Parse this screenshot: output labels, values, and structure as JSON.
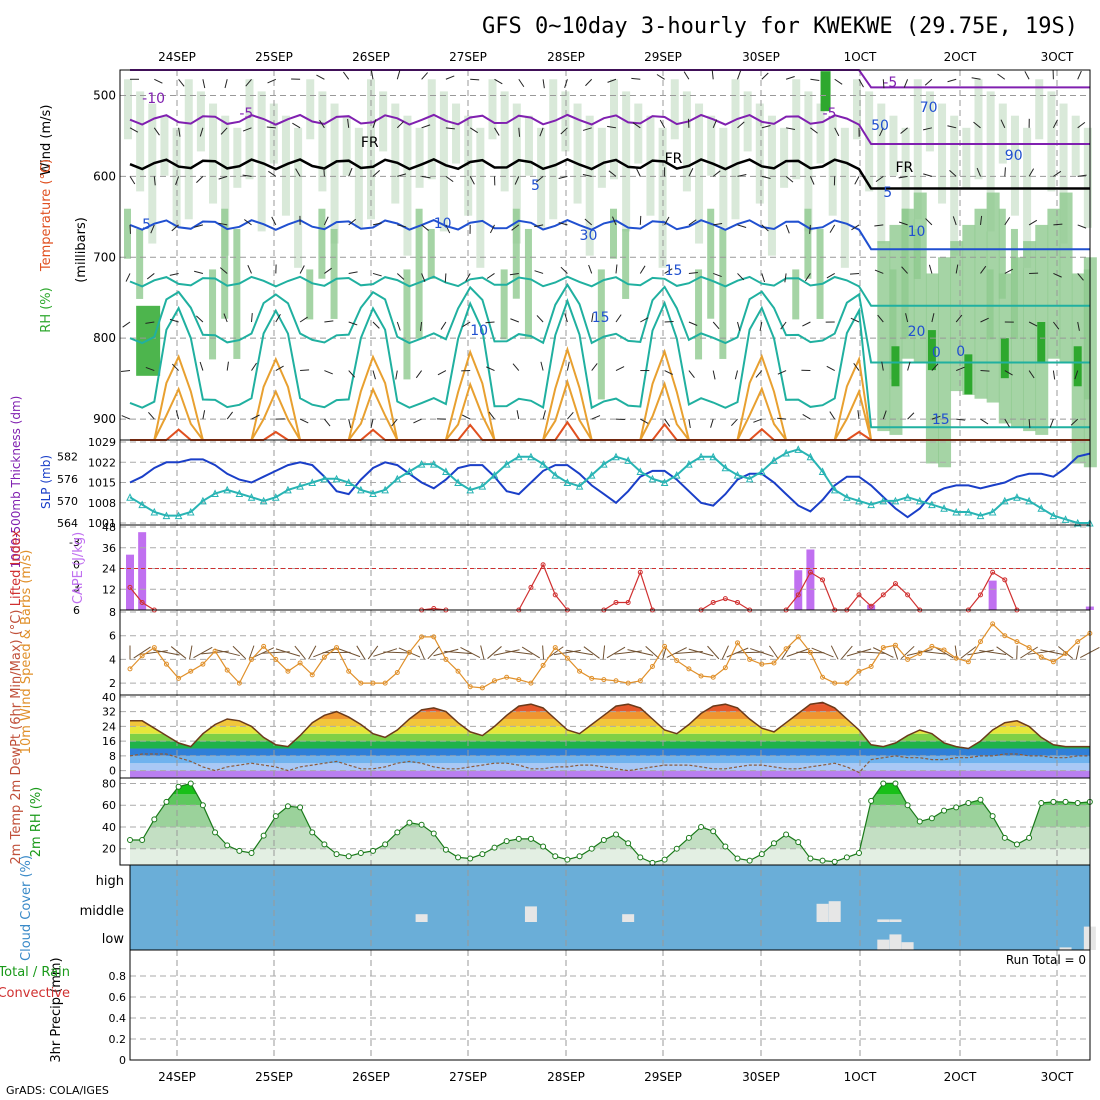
{
  "title": "GFS 0~10day 3-hourly for KWEKWE (29.75E, 19S)",
  "credit": "GrADS: COLA/IGES",
  "run_total_text": "Run Total = 0",
  "date_labels": [
    "24SEP",
    "25SEP",
    "26SEP",
    "27SEP",
    "28SEP",
    "29SEP",
    "30SEP",
    "1OCT",
    "2OCT",
    "3OCT"
  ],
  "colors": {
    "rh_dark": "#2ea82e",
    "rh_mid": "#8fc98f",
    "rh_light": "#cfe4cf",
    "isotherm_warm": "#e8a030",
    "isotherm_hot": "#e05020",
    "isotherm_cool": "#20b0a0",
    "isotherm_cold": "#2050d0",
    "isotherm_minus": "#8020b0",
    "freezing": "#000000",
    "slp_line": "#1a3fc8",
    "thickness_line": "#28b4b4",
    "cape_bar": "#c070f0",
    "lifted_index": "#d03030",
    "wind_speed": "#e0902a",
    "wind_barb": "#705030",
    "cloud_bg": "#6aaed8",
    "cloud_fill": "#e6e6e6"
  },
  "chart_data": [
    {
      "type": "heatmap",
      "panel": "cross-section",
      "ylabel_parts": [
        "RH (%)",
        "Temperature (°C)",
        "Wind (m/s)",
        "(millibars)"
      ],
      "y_ticks": [
        500,
        600,
        700,
        800,
        900
      ],
      "ylim": [
        1000,
        450
      ],
      "contour_labels": [
        "-10",
        "-5",
        "-5",
        "-5",
        "FR",
        "FR",
        "FR",
        "5",
        "5",
        "5",
        "10",
        "10",
        "15",
        "15",
        "20",
        "0",
        "0",
        "15",
        "10",
        "30",
        "50",
        "70",
        "90"
      ],
      "grid": true
    },
    {
      "type": "line",
      "panel": "slp-thickness",
      "ylabel_left": "1000-500mb Thickness (dm)",
      "ylabel_right": "SLP (mb)",
      "left_ticks": [
        "564",
        "570",
        "576",
        "582"
      ],
      "right_ticks": [
        "1001",
        "1008",
        "1015",
        "1022",
        "1029"
      ],
      "x": [
        0,
        1,
        2,
        3,
        4,
        5,
        6,
        7,
        8,
        9,
        10,
        11,
        12,
        13,
        14,
        15,
        16,
        17,
        18,
        19,
        20,
        21,
        22,
        23,
        24,
        25,
        26,
        27,
        28,
        29,
        30,
        31,
        32,
        33,
        34,
        35,
        36,
        37,
        38,
        39,
        40,
        41,
        42,
        43,
        44,
        45,
        46,
        47,
        48,
        49,
        50,
        51,
        52,
        53,
        54,
        55,
        56,
        57,
        58,
        59,
        60,
        61,
        62,
        63,
        64,
        65,
        66,
        67,
        68,
        69,
        70,
        71,
        72,
        73,
        74,
        75,
        76,
        77,
        78,
        79
      ],
      "series": [
        {
          "name": "SLP",
          "unit": "mb",
          "values": [
            1015,
            1017,
            1020,
            1022,
            1022,
            1023,
            1023,
            1021,
            1018,
            1016,
            1015,
            1017,
            1019,
            1021,
            1022,
            1021,
            1017,
            1012,
            1011,
            1016,
            1020,
            1022,
            1021,
            1018,
            1015,
            1013,
            1016,
            1020,
            1021,
            1021,
            1017,
            1012,
            1011,
            1015,
            1019,
            1021,
            1021,
            1018,
            1014,
            1011,
            1008,
            1012,
            1017,
            1019,
            1019,
            1016,
            1012,
            1008,
            1007,
            1011,
            1016,
            1018,
            1018,
            1015,
            1011,
            1007,
            1005,
            1009,
            1014,
            1017,
            1017,
            1014,
            1010,
            1006,
            1003,
            1006,
            1011,
            1013,
            1014,
            1014,
            1013,
            1014,
            1015,
            1017,
            1018,
            1018,
            1017,
            1020,
            1024,
            1025
          ]
        },
        {
          "name": "Thickness",
          "unit": "dm",
          "values": [
            571,
            569,
            567,
            566,
            566,
            567,
            570,
            572,
            573,
            572,
            571,
            570,
            571,
            573,
            574,
            575,
            576,
            576,
            575,
            573,
            572,
            573,
            576,
            578,
            580,
            580,
            578,
            575,
            573,
            574,
            577,
            580,
            582,
            582,
            580,
            577,
            575,
            574,
            577,
            580,
            582,
            581,
            578,
            576,
            575,
            577,
            580,
            582,
            582,
            579,
            577,
            576,
            578,
            581,
            583,
            584,
            582,
            578,
            573,
            571,
            570,
            569,
            570,
            570,
            571,
            570,
            569,
            568,
            567,
            567,
            566,
            567,
            570,
            571,
            570,
            568,
            566,
            565,
            564,
            564
          ]
        }
      ]
    },
    {
      "type": "bar",
      "panel": "cape-lifted-index",
      "ylabel_left": "Lifted Index",
      "ylabel_right": "CAPE (J/kg)",
      "left_ticks": [
        "-3",
        "0",
        "3",
        "6"
      ],
      "right_ticks": [
        "12",
        "24",
        "36",
        "48"
      ],
      "reference_line": 24,
      "cape_bars": [
        {
          "t": 0,
          "value": 32
        },
        {
          "t": 1,
          "value": 45
        },
        {
          "t": 55,
          "value": 23
        },
        {
          "t": 56,
          "value": 35
        },
        {
          "t": 61,
          "value": 3
        },
        {
          "t": 71,
          "value": 17
        },
        {
          "t": 79,
          "value": 2
        }
      ],
      "lifted_index_points": [
        {
          "t": 0,
          "value": 3
        },
        {
          "t": 1,
          "value": 5
        },
        {
          "t": 2,
          "value": 6
        },
        {
          "t": 24,
          "value": 6
        },
        {
          "t": 25,
          "value": 5.8
        },
        {
          "t": 26,
          "value": 6
        },
        {
          "t": 32,
          "value": 6
        },
        {
          "t": 33,
          "value": 3
        },
        {
          "t": 34,
          "value": 0
        },
        {
          "t": 35,
          "value": 4
        },
        {
          "t": 36,
          "value": 6
        },
        {
          "t": 39,
          "value": 6
        },
        {
          "t": 40,
          "value": 5
        },
        {
          "t": 41,
          "value": 5
        },
        {
          "t": 42,
          "value": 1
        },
        {
          "t": 43,
          "value": 6
        },
        {
          "t": 47,
          "value": 6
        },
        {
          "t": 48,
          "value": 5
        },
        {
          "t": 49,
          "value": 4.5
        },
        {
          "t": 50,
          "value": 5
        },
        {
          "t": 51,
          "value": 6
        },
        {
          "t": 54,
          "value": 6
        },
        {
          "t": 55,
          "value": 4
        },
        {
          "t": 56,
          "value": 1
        },
        {
          "t": 57,
          "value": 2
        },
        {
          "t": 58,
          "value": 6
        },
        {
          "t": 59,
          "value": 6
        },
        {
          "t": 60,
          "value": 4
        },
        {
          "t": 61,
          "value": 5.5
        },
        {
          "t": 62,
          "value": 4
        },
        {
          "t": 63,
          "value": 2.5
        },
        {
          "t": 64,
          "value": 4
        },
        {
          "t": 65,
          "value": 6
        },
        {
          "t": 69,
          "value": 6
        },
        {
          "t": 70,
          "value": 4
        },
        {
          "t": 71,
          "value": 1
        },
        {
          "t": 72,
          "value": 2
        },
        {
          "t": 73,
          "value": 6
        }
      ]
    },
    {
      "type": "line",
      "panel": "10m-wind",
      "ylabel": "10m Wind Speed & Barbs (m/s)",
      "y_ticks": [
        2,
        4,
        6,
        8
      ],
      "ylim": [
        1,
        8
      ],
      "series": [
        {
          "name": "Speed",
          "values": [
            3.2,
            4.3,
            5.0,
            3.6,
            2.4,
            3.0,
            3.6,
            4.7,
            3.1,
            2.0,
            4.0,
            5.1,
            4.0,
            3.0,
            3.7,
            2.7,
            4.2,
            5.0,
            3.0,
            2.0,
            2.0,
            2.0,
            2.9,
            4.6,
            5.9,
            5.9,
            4.0,
            3.0,
            1.7,
            1.6,
            2.2,
            2.5,
            2.3,
            2.0,
            3.5,
            5.0,
            4.1,
            3.0,
            2.4,
            2.3,
            2.2,
            2.0,
            2.2,
            3.4,
            5.1,
            3.9,
            3.2,
            2.6,
            2.5,
            3.3,
            5.4,
            4.0,
            3.6,
            3.7,
            4.9,
            5.9,
            4.6,
            2.5,
            2.0,
            2.0,
            3.0,
            3.4,
            5.0,
            5.2,
            4.0,
            4.5,
            5.1,
            4.8,
            4.1,
            3.8,
            5.5,
            7.0,
            6.0,
            5.5,
            5.0,
            4.2,
            3.8,
            4.5,
            5.5,
            6.2
          ]
        }
      ]
    },
    {
      "type": "area",
      "panel": "2m-temp",
      "ylabel": "2m Temp 2m DewPt (6hr Min/Max) (°C)",
      "y_ticks": [
        0,
        8,
        16,
        24,
        32,
        40
      ],
      "ylim": [
        -4,
        41
      ],
      "series": [
        {
          "name": "2m Temp",
          "values": [
            27,
            27,
            23,
            19,
            15,
            13,
            20,
            25,
            28,
            27,
            24,
            18,
            14,
            13,
            19,
            26,
            30,
            32,
            29,
            25,
            20,
            18,
            22,
            28,
            33,
            34,
            32,
            26,
            21,
            19,
            24,
            30,
            35,
            36,
            34,
            28,
            22,
            20,
            25,
            30,
            35,
            36,
            34,
            28,
            22,
            20,
            25,
            31,
            35,
            36,
            34,
            28,
            23,
            21,
            26,
            31,
            36,
            37,
            34,
            28,
            22,
            14,
            13,
            15,
            19,
            22,
            20,
            15,
            13,
            12,
            16,
            22,
            26,
            27,
            24,
            18,
            14,
            13,
            13,
            13
          ]
        },
        {
          "name": "2m DewPt",
          "values": [
            8,
            9,
            9,
            9,
            7,
            5,
            2,
            0,
            2,
            3,
            4,
            3,
            2,
            0,
            2,
            3,
            4,
            5,
            3,
            1,
            1,
            2,
            4,
            5,
            4,
            2,
            1,
            1,
            2,
            3,
            4,
            4,
            3,
            1,
            1,
            2,
            2,
            3,
            3,
            2,
            1,
            0,
            1,
            2,
            3,
            3,
            3,
            2,
            1,
            1,
            2,
            3,
            3,
            2,
            1,
            1,
            2,
            3,
            4,
            2,
            -1,
            6,
            7,
            8,
            7,
            7,
            6,
            6,
            7,
            7,
            8,
            8,
            9,
            9,
            8,
            8,
            7,
            7,
            8,
            8
          ]
        }
      ]
    },
    {
      "type": "area",
      "panel": "2m-rh",
      "ylabel": "2m RH (%)",
      "y_ticks": [
        20,
        40,
        60,
        80
      ],
      "ylim": [
        5,
        85
      ],
      "series": [
        {
          "name": "2m RH",
          "values": [
            28,
            28,
            47,
            63,
            77,
            80,
            60,
            35,
            23,
            18,
            16,
            32,
            50,
            59,
            58,
            35,
            24,
            15,
            13,
            16,
            18,
            24,
            35,
            44,
            42,
            34,
            19,
            12,
            11,
            15,
            21,
            27,
            29,
            29,
            22,
            13,
            10,
            13,
            20,
            28,
            33,
            25,
            12,
            7,
            10,
            20,
            30,
            40,
            36,
            22,
            11,
            9,
            15,
            25,
            33,
            26,
            11,
            9,
            8,
            12,
            16,
            64,
            80,
            80,
            60,
            45,
            48,
            55,
            58,
            62,
            65,
            50,
            30,
            24,
            30,
            62,
            63,
            63,
            62,
            63
          ]
        }
      ]
    },
    {
      "type": "heatmap",
      "panel": "cloud-cover",
      "ylabel": "Cloud Cover (%)",
      "levels": [
        "high",
        "middle",
        "low"
      ],
      "cells": [
        {
          "t": 24,
          "level": "middle",
          "value": 30
        },
        {
          "t": 33,
          "level": "middle",
          "value": 60
        },
        {
          "t": 41,
          "level": "middle",
          "value": 30
        },
        {
          "t": 57,
          "level": "middle",
          "value": 70
        },
        {
          "t": 58,
          "level": "middle",
          "value": 80
        },
        {
          "t": 62,
          "level": "middle",
          "value": 10
        },
        {
          "t": 63,
          "level": "middle",
          "value": 10
        },
        {
          "t": 62,
          "level": "low",
          "value": 40
        },
        {
          "t": 63,
          "level": "low",
          "value": 60
        },
        {
          "t": 64,
          "level": "low",
          "value": 30
        },
        {
          "t": 77,
          "level": "low",
          "value": 10
        },
        {
          "t": 79,
          "level": "low",
          "value": 90
        }
      ]
    },
    {
      "type": "bar",
      "panel": "precip",
      "ylabel": "3hr Precip (mm)",
      "side_label_1": "Total / Rain",
      "side_label_2": "Convective",
      "y_ticks": [
        "0",
        "0.2",
        "0.4",
        "0.6",
        "0.8"
      ],
      "ylim": [
        0,
        1
      ],
      "values": []
    }
  ]
}
